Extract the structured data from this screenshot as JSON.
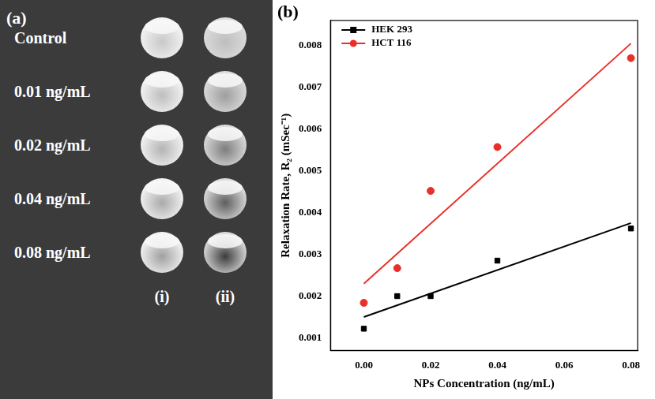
{
  "panel_a": {
    "panel_label": "(a)",
    "rows": [
      "Control",
      "0.01 ng/mL",
      "0.02 ng/mL",
      "0.04 ng/mL",
      "0.08 ng/mL"
    ],
    "columns": [
      "(i)",
      "(ii)"
    ]
  },
  "chart_data": {
    "type": "scatter",
    "panel_label": "(b)",
    "x_label": "NPs Concentration (ng/mL)",
    "y_label": "Relaxation Rate, R₂ (mSec⁻¹)",
    "x": [
      0,
      0.01,
      0.02,
      0.04,
      0.08
    ],
    "series": [
      {
        "name": "HEK 293",
        "color": "#000000",
        "marker": "square",
        "values": [
          0.00122,
          0.002,
          0.002,
          0.00285,
          0.00362
        ],
        "fit": {
          "x": [
            0,
            0.08
          ],
          "values": [
            0.0015,
            0.00375
          ]
        }
      },
      {
        "name": "HCT 116",
        "color": "#e8302a",
        "marker": "circle",
        "values": [
          0.00184,
          0.00267,
          0.00452,
          0.00557,
          0.0077
        ],
        "fit": {
          "x": [
            0,
            0.08
          ],
          "values": [
            0.0023,
            0.00805
          ]
        }
      }
    ],
    "xlim": [
      -0.01,
      0.082
    ],
    "xticks": [
      {
        "value": 0,
        "label": "0.00"
      },
      {
        "value": 0.02,
        "label": "0.02"
      },
      {
        "value": 0.04,
        "label": "0.04"
      },
      {
        "value": 0.06,
        "label": "0.06"
      },
      {
        "value": 0.08,
        "label": "0.08"
      }
    ],
    "ylim": [
      0.0007,
      0.0086
    ],
    "yticks": [
      0.001,
      0.002,
      0.003,
      0.004,
      0.005,
      0.006,
      0.007,
      0.008
    ],
    "grid": false,
    "legend": "upper left"
  }
}
